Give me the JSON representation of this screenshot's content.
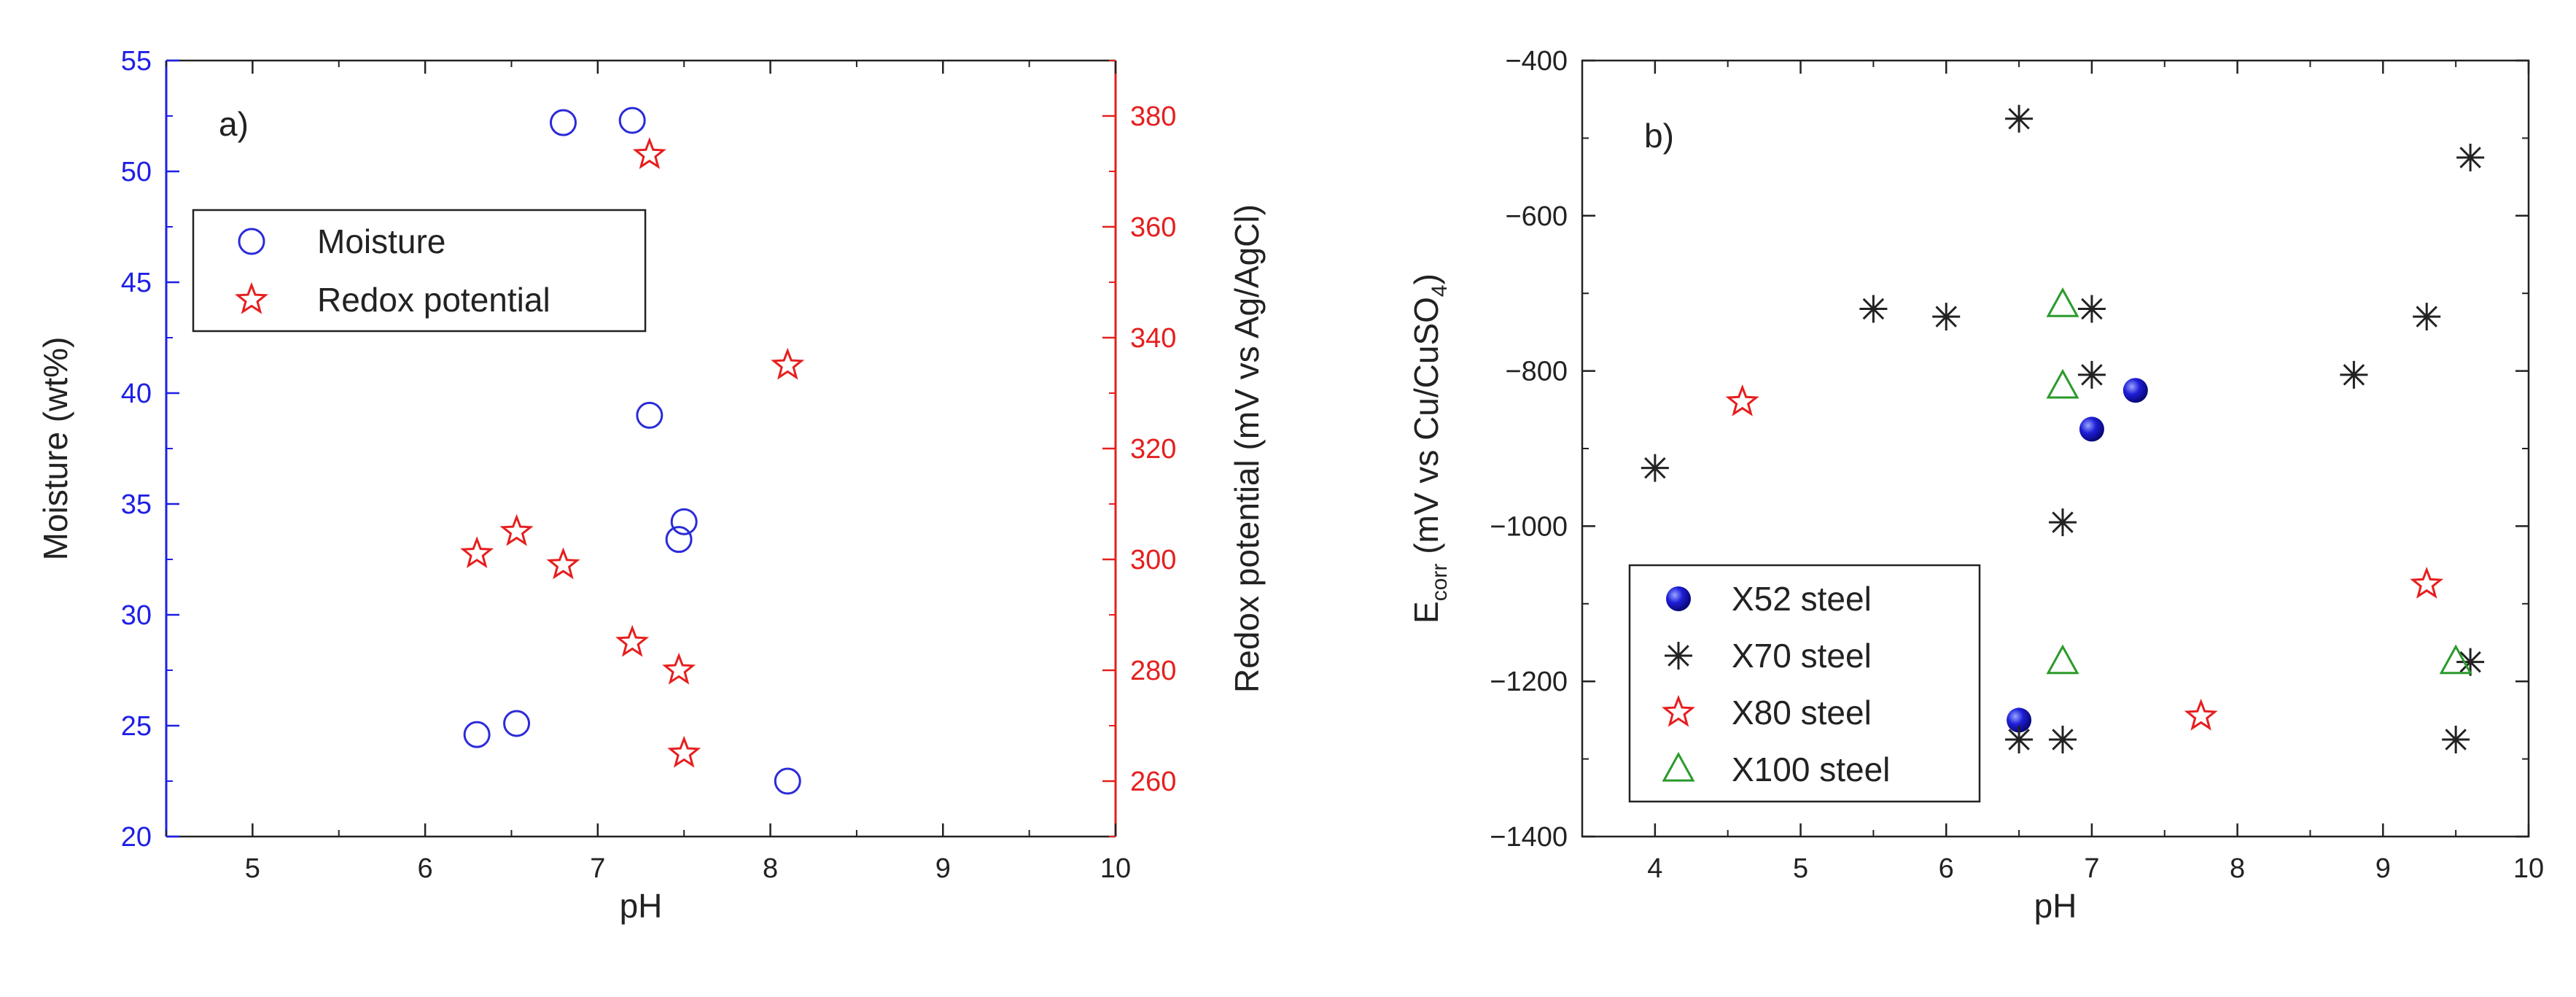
{
  "chart_data": [
    {
      "type": "scatter",
      "panel_label": "a)",
      "xlabel": "pH",
      "ylabel_left": "Moisture (wt%)",
      "ylabel_right": "Redox potential (mV vs Ag/AgCl)",
      "xlim": [
        4.5,
        10
      ],
      "ylim_left": [
        20,
        55
      ],
      "ylim_right": [
        250,
        390
      ],
      "x_ticks": [
        5,
        6,
        7,
        8,
        9,
        10
      ],
      "y_ticks_left": [
        20,
        25,
        30,
        35,
        40,
        45,
        50,
        55
      ],
      "y_ticks_right": [
        260,
        280,
        300,
        320,
        340,
        360,
        380
      ],
      "legend_position": "upper-left",
      "colors": {
        "left_axis": "#1f1fe6",
        "right_axis": "#e61e1e"
      },
      "series": [
        {
          "name": "Moisture",
          "marker": "circle",
          "color": "#2b2bd9",
          "axis": "left",
          "points": [
            [
              6.8,
              52.2
            ],
            [
              7.2,
              52.3
            ],
            [
              7.3,
              39.0
            ],
            [
              7.5,
              34.2
            ],
            [
              7.47,
              33.4
            ],
            [
              6.3,
              24.6
            ],
            [
              6.53,
              25.1
            ],
            [
              8.1,
              22.5
            ]
          ]
        },
        {
          "name": "Redox potential",
          "marker": "star",
          "color": "#e61e1e",
          "axis": "right",
          "points": [
            [
              7.3,
              373
            ],
            [
              8.1,
              335
            ],
            [
              6.3,
              301
            ],
            [
              6.53,
              305
            ],
            [
              6.8,
              299
            ],
            [
              7.2,
              285
            ],
            [
              7.47,
              280
            ],
            [
              7.5,
              265
            ]
          ]
        }
      ]
    },
    {
      "type": "scatter",
      "panel_label": "b)",
      "xlabel": "pH",
      "ylabel_main": "E",
      "ylabel_sub": "corr",
      "ylabel_rest": " (mV vs Cu/CuSO",
      "ylabel_sub2": "4",
      "ylabel_end": ")",
      "xlim": [
        3.5,
        10
      ],
      "ylim": [
        -1400,
        -400
      ],
      "x_ticks": [
        4,
        5,
        6,
        7,
        8,
        9,
        10
      ],
      "y_ticks": [
        -1400,
        -1200,
        -1000,
        -800,
        -600,
        -400
      ],
      "y_tick_labels": [
        "−1400",
        "−1200",
        "−1000",
        "−800",
        "−600",
        "−400"
      ],
      "legend_position": "lower-left",
      "series": [
        {
          "name": "X52 steel",
          "marker": "ball",
          "color": "#1a1ad6",
          "points": [
            [
              6.5,
              -1250
            ],
            [
              7.0,
              -875
            ],
            [
              7.3,
              -825
            ]
          ]
        },
        {
          "name": "X70 steel",
          "marker": "asterisk",
          "color": "#222222",
          "points": [
            [
              6.5,
              -475
            ],
            [
              9.6,
              -525
            ],
            [
              5.5,
              -720
            ],
            [
              6.0,
              -730
            ],
            [
              7.0,
              -720
            ],
            [
              9.3,
              -730
            ],
            [
              7.0,
              -805
            ],
            [
              8.8,
              -805
            ],
            [
              4.0,
              -925
            ],
            [
              6.8,
              -995
            ],
            [
              9.6,
              -1175
            ],
            [
              6.5,
              -1275
            ],
            [
              6.8,
              -1275
            ],
            [
              9.5,
              -1275
            ]
          ]
        },
        {
          "name": "X80 steel",
          "marker": "star",
          "color": "#e61e1e",
          "points": [
            [
              4.6,
              -840
            ],
            [
              9.3,
              -1075
            ],
            [
              7.75,
              -1245
            ]
          ]
        },
        {
          "name": "X100 steel",
          "marker": "triangle",
          "color": "#2a9a2a",
          "points": [
            [
              6.8,
              -715
            ],
            [
              6.8,
              -820
            ],
            [
              6.8,
              -1175
            ],
            [
              9.5,
              -1175
            ]
          ]
        }
      ]
    }
  ]
}
